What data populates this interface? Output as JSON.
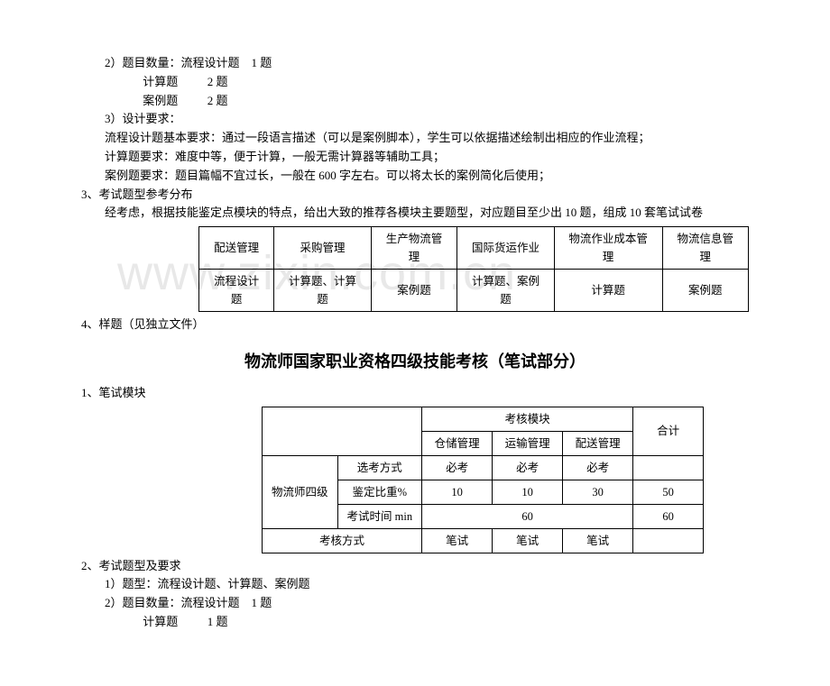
{
  "watermark": "www.zixin.com.cn",
  "block1": {
    "l1": "        2）题目数量：流程设计题    1 题",
    "l2": "                     计算题          2 题",
    "l3": "                     案例题          2 题",
    "l4": "        3）设计要求：",
    "l5": "        流程设计题基本要求：通过一段语言描述（可以是案例脚本），学生可以依据描述绘制出相应的作业流程；",
    "l6": "        计算题要求：难度中等，便于计算，一般无需计算器等辅助工具；",
    "l7": "        案例题要求：题目篇幅不宜过长，一般在 600 字左右。可以将太长的案例简化后使用；",
    "l8": "3、考试题型参考分布",
    "l9": "        经考虑，根据技能鉴定点模块的特点，给出大致的推荐各模块主要题型，对应题目至少出 10 题，组成 10 套笔试试卷"
  },
  "table1": {
    "h": [
      "配送管理",
      "采购管理",
      "生产物流管理",
      "国际货运作业",
      "物流作业成本管理",
      "物流信息管理"
    ],
    "r": [
      "流程设计题",
      "计算题、计算题",
      "案例题",
      "计算题、案例题",
      "计算题",
      "案例题"
    ]
  },
  "mid": {
    "l1": "4、样题（见独立文件）"
  },
  "title2": "物流师国家职业资格四级技能考核（笔试部分）",
  "block2": {
    "l1": "1、笔试模块"
  },
  "table2": {
    "header_modules": "考核模块",
    "header_total": "合计",
    "cols": [
      "仓储管理",
      "运输管理",
      "配送管理"
    ],
    "rowgrp": "物流师四级",
    "r1": [
      "选考方式",
      "必考",
      "必考",
      "必考",
      ""
    ],
    "r2": [
      "鉴定比重%",
      "10",
      "10",
      "30",
      "50"
    ],
    "r3": [
      "考试时间 min",
      "60",
      "60"
    ],
    "r4": [
      "考核方式",
      "笔试",
      "笔试",
      "笔试",
      ""
    ]
  },
  "block3": {
    "l1": "2、考试题型及要求",
    "l2": "        1）题型：流程设计题、计算题、案例题",
    "l3": "        2）题目数量：流程设计题    1 题",
    "l4": "                     计算题          1 题"
  }
}
